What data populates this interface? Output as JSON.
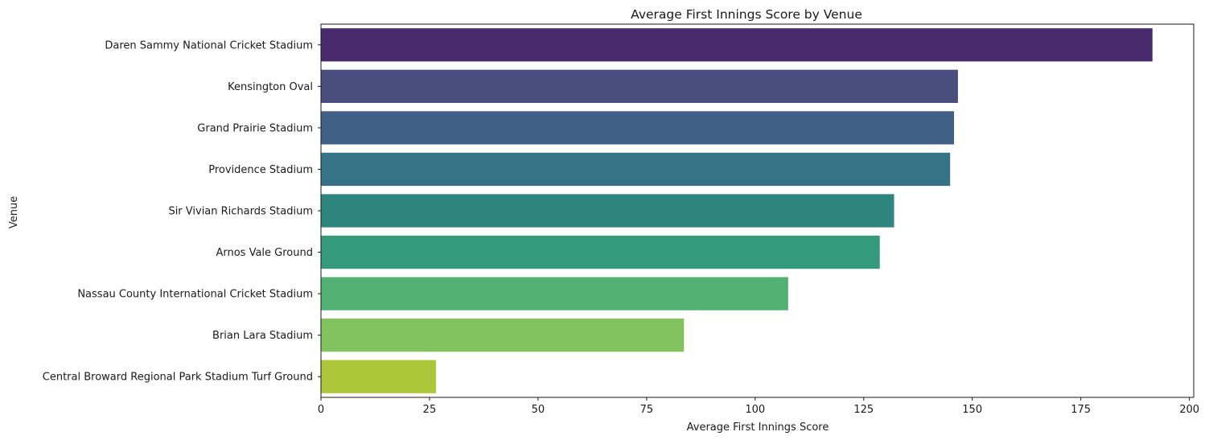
{
  "chart_data": {
    "type": "bar",
    "orientation": "horizontal",
    "title": "Average First Innings Score by Venue",
    "xlabel": "Average First Innings Score",
    "ylabel": "Venue",
    "xlim": [
      0,
      201
    ],
    "xticks": [
      0,
      25,
      50,
      75,
      100,
      125,
      150,
      175,
      200
    ],
    "grid": false,
    "categories": [
      "Daren Sammy National Cricket Stadium",
      "Kensington Oval",
      "Grand Prairie Stadium",
      "Providence Stadium",
      "Sir Vivian Richards Stadium",
      "Arnos Vale Ground",
      "Nassau County International Cricket Stadium",
      "Brian Lara Stadium",
      "Central Broward Regional Park Stadium Turf Ground"
    ],
    "values": [
      191.5,
      146.7,
      145.8,
      144.9,
      132.0,
      128.7,
      107.6,
      83.6,
      26.5
    ],
    "colors": [
      "#482a6d",
      "#4a4e7f",
      "#416085",
      "#377386",
      "#2e8580",
      "#359a7b",
      "#53b073",
      "#81c35f",
      "#adc73b"
    ]
  }
}
